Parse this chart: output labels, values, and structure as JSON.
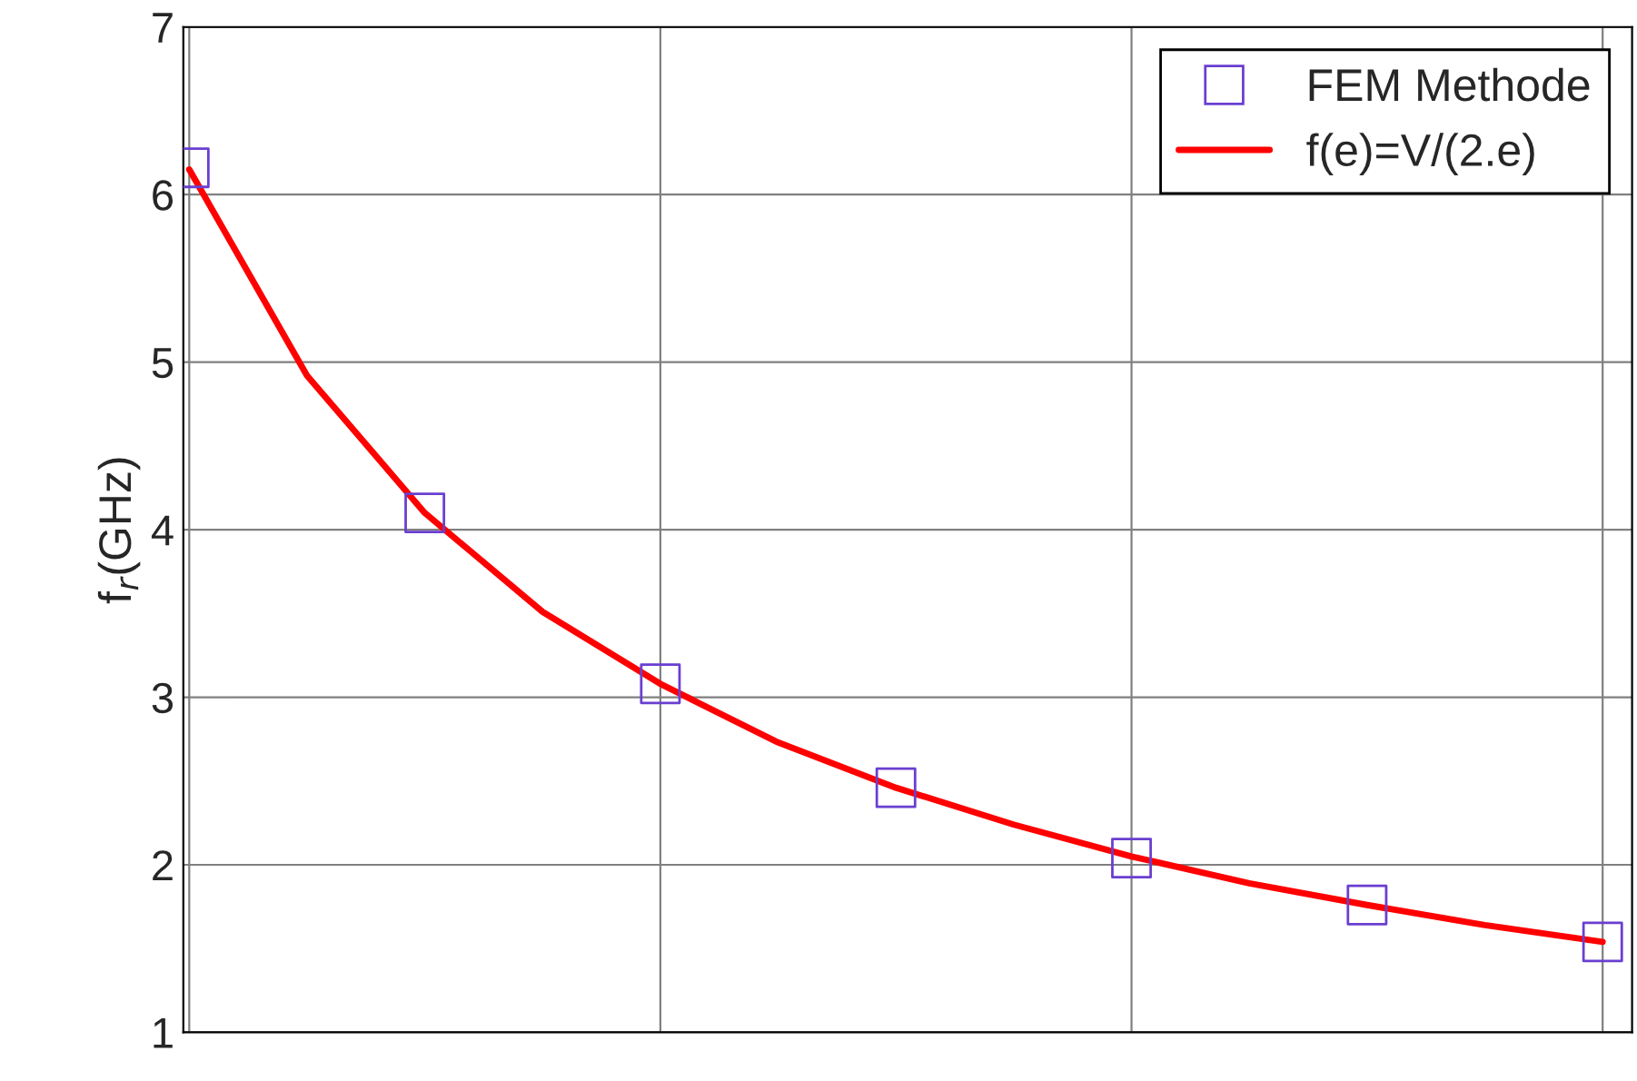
{
  "chart_data": {
    "type": "line",
    "ylabel": "f$_{r}$(GHz)",
    "categories": [
      null,
      null,
      null,
      null,
      null,
      null,
      null,
      null,
      null,
      null,
      null,
      null,
      null
    ],
    "series": [
      {
        "name": "FEM Methode",
        "type": "scatter",
        "color": "#6a3fd0",
        "marker": "square",
        "values": [
          6.16,
          null,
          4.1,
          null,
          3.08,
          null,
          2.46,
          null,
          2.04,
          null,
          1.76,
          null,
          1.54
        ]
      },
      {
        "name": "f(e)=V/(2.e)",
        "color": "#ff0000",
        "line_style": "solid",
        "values": [
          6.15,
          4.92,
          4.1,
          3.51,
          3.08,
          2.73,
          2.46,
          2.24,
          2.05,
          1.89,
          1.76,
          1.64,
          1.54
        ]
      }
    ],
    "ylim": [
      1,
      7
    ],
    "yticks": [
      1,
      2,
      3,
      4,
      5,
      6,
      7
    ],
    "grid": true,
    "legend": "top right",
    "tick_labels": "y"
  }
}
